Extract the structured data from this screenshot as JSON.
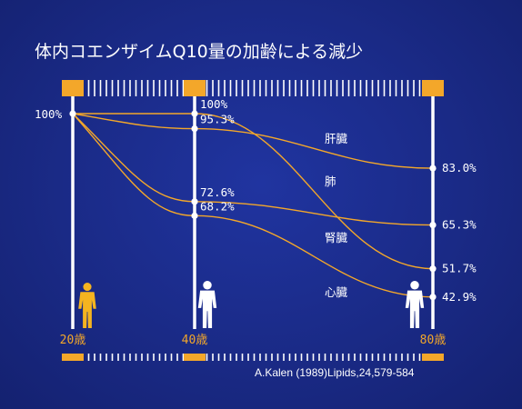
{
  "title": "体内コエンザイムQ10量の加齢による減少",
  "source": "A.Kalen (1989)Lipids,24,579-584",
  "colors": {
    "background": "#1a2a86",
    "line": "#f3a72a",
    "axis": "#ffffff",
    "figure_young": "#f5b420",
    "figure_old": "#ffffff"
  },
  "chart_data": {
    "type": "line",
    "x": [
      20,
      40,
      80
    ],
    "x_tick_labels": [
      "20歳",
      "40歳",
      "80歳"
    ],
    "start_label": "100%",
    "series": [
      {
        "name": "肝臓",
        "values": [
          100,
          95.3,
          83.0
        ],
        "labels": [
          "",
          "95.3%",
          "83.0%"
        ]
      },
      {
        "name": "肺",
        "values": [
          100,
          100,
          51.7
        ],
        "labels": [
          "",
          "100%",
          "51.7%"
        ]
      },
      {
        "name": "腎臓",
        "values": [
          100,
          72.6,
          65.3
        ],
        "labels": [
          "",
          "72.6%",
          "65.3%"
        ]
      },
      {
        "name": "心臓",
        "values": [
          100,
          68.2,
          42.9
        ],
        "labels": [
          "",
          "68.2%",
          "42.9%"
        ]
      }
    ]
  }
}
